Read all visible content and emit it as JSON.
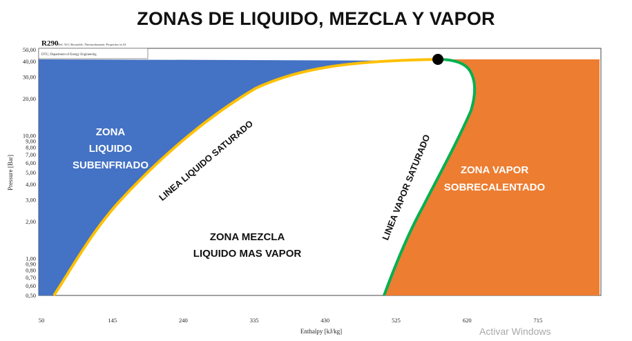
{
  "title": "ZONAS DE LIQUIDO, MEZCLA Y VAPOR",
  "chart_header": {
    "refrigerant": "R290",
    "reference": "Ref: W.C.Reynolds: Thermodynamic Properties in SI",
    "department": "DTU, Department of Energy Engineering"
  },
  "axes": {
    "xlabel": "Enthalpy [kJ/kg]",
    "ylabel": "Pressure [Bar]",
    "x_ticks": [
      "50",
      "145",
      "240",
      "335",
      "430",
      "525",
      "620",
      "715"
    ],
    "y_ticks": [
      "50,00",
      "40,00",
      "30,00",
      "20,00",
      "10,00",
      "9,00",
      "8,00",
      "7,00",
      "6,00",
      "5,00",
      "4,00",
      "3,00",
      "2,00",
      "1,00",
      "0,90",
      "0,80",
      "0,70",
      "0,60",
      "0,50"
    ]
  },
  "zones": {
    "liquid": [
      "ZONA",
      "LIQUIDO",
      "SUBENFRIADO"
    ],
    "mixture": [
      "ZONA MEZCLA",
      "LIQUIDO MAS VAPOR"
    ],
    "vapor": [
      "ZONA VAPOR",
      "SOBRECALENTADO"
    ]
  },
  "lines": {
    "saturated_liquid": "LINEA LIQUIDO SATURADO",
    "saturated_vapor": "LINEA VAPOR SATURADO"
  },
  "colors": {
    "liquid_zone": "#4472c4",
    "vapor_zone": "#ed7d31",
    "saturated_liquid_line": "#ffc000",
    "saturated_vapor_line": "#00b050",
    "critical_point": "#000000"
  },
  "watermark": "Activar Windows"
}
